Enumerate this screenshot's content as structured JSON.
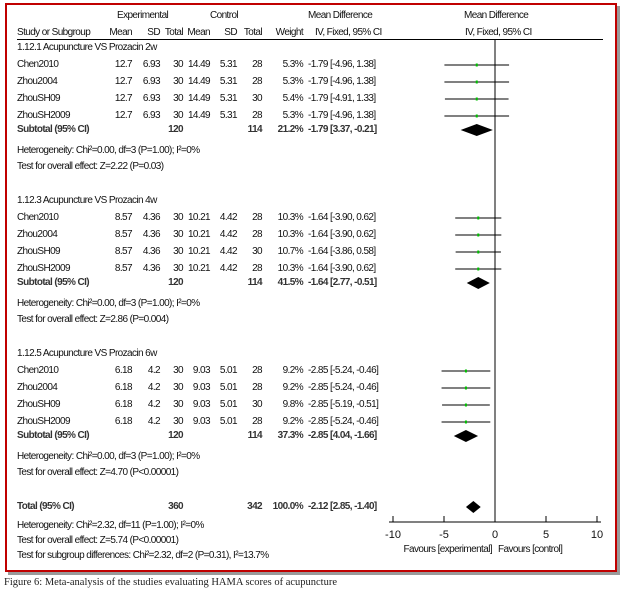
{
  "caption": "Figure 6: Meta-analysis of the studies evaluating HAMA scores of acupuncture",
  "header": {
    "experimental": "Experimental",
    "control": "Control",
    "mean_difference": "Mean Difference",
    "mean_difference_plot": "Mean Difference",
    "study": "Study or Subgroup",
    "mean": "Mean",
    "sd": "SD",
    "total": "Total",
    "weight": "Weight",
    "method": "IV, Fixed, 95% CI",
    "method_plot": "IV, Fixed, 95% CI"
  },
  "chart_data": {
    "type": "forest",
    "xlim": [
      -10,
      10
    ],
    "xticks": [
      "-10",
      "-5",
      "0",
      "5",
      "10"
    ],
    "xlabel_left": "Favours [experimental]",
    "xlabel_right": "Favours [control]",
    "colors": {
      "study_marker": "#00c000",
      "diamond": "#000000",
      "frame": "#c00000"
    },
    "groups": [
      {
        "title": "1.12.1 Acupuncture VS Prozacin 2w",
        "studies": [
          {
            "study": "Chen2010",
            "e_mean": "12.7",
            "e_sd": "6.93",
            "e_total": "30",
            "c_mean": "14.49",
            "c_sd": "5.31",
            "c_total": "28",
            "weight": "5.3%",
            "ci": "-1.79 [-4.96, 1.38]",
            "md": -1.79,
            "lo": -4.96,
            "hi": 1.38
          },
          {
            "study": "Zhou2004",
            "e_mean": "12.7",
            "e_sd": "6.93",
            "e_total": "30",
            "c_mean": "14.49",
            "c_sd": "5.31",
            "c_total": "28",
            "weight": "5.3%",
            "ci": "-1.79 [-4.96, 1.38]",
            "md": -1.79,
            "lo": -4.96,
            "hi": 1.38
          },
          {
            "study": "ZhouSH09",
            "e_mean": "12.7",
            "e_sd": "6.93",
            "e_total": "30",
            "c_mean": "14.49",
            "c_sd": "5.31",
            "c_total": "30",
            "weight": "5.4%",
            "ci": "-1.79 [-4.91, 1.33]",
            "md": -1.79,
            "lo": -4.91,
            "hi": 1.33
          },
          {
            "study": "ZhouSH2009",
            "e_mean": "12.7",
            "e_sd": "6.93",
            "e_total": "30",
            "c_mean": "14.49",
            "c_sd": "5.31",
            "c_total": "28",
            "weight": "5.3%",
            "ci": "-1.79 [-4.96, 1.38]",
            "md": -1.79,
            "lo": -4.96,
            "hi": 1.38
          }
        ],
        "subtotal": {
          "label": "Subtotal (95% CI)",
          "e_total": "120",
          "c_total": "114",
          "weight": "21.2%",
          "ci": "-1.79 [3.37, -0.21]",
          "md": -1.79,
          "lo": -3.37,
          "hi": -0.21
        },
        "heterogeneity": "Heterogeneity: Chi²=0.00, df=3 (P=1.00); I²=0%",
        "overall": "Test for overall effect: Z=2.22 (P=0.03)"
      },
      {
        "title": "1.12.3 Acupuncture VS Prozacin 4w",
        "studies": [
          {
            "study": "Chen2010",
            "e_mean": "8.57",
            "e_sd": "4.36",
            "e_total": "30",
            "c_mean": "10.21",
            "c_sd": "4.42",
            "c_total": "28",
            "weight": "10.3%",
            "ci": "-1.64 [-3.90, 0.62]",
            "md": -1.64,
            "lo": -3.9,
            "hi": 0.62
          },
          {
            "study": "Zhou2004",
            "e_mean": "8.57",
            "e_sd": "4.36",
            "e_total": "30",
            "c_mean": "10.21",
            "c_sd": "4.42",
            "c_total": "28",
            "weight": "10.3%",
            "ci": "-1.64 [-3.90, 0.62]",
            "md": -1.64,
            "lo": -3.9,
            "hi": 0.62
          },
          {
            "study": "ZhouSH09",
            "e_mean": "8.57",
            "e_sd": "4.36",
            "e_total": "30",
            "c_mean": "10.21",
            "c_sd": "4.42",
            "c_total": "30",
            "weight": "10.7%",
            "ci": "-1.64 [-3.86, 0.58]",
            "md": -1.64,
            "lo": -3.86,
            "hi": 0.58
          },
          {
            "study": "ZhouSH2009",
            "e_mean": "8.57",
            "e_sd": "4.36",
            "e_total": "30",
            "c_mean": "10.21",
            "c_sd": "4.42",
            "c_total": "28",
            "weight": "10.3%",
            "ci": "-1.64 [-3.90, 0.62]",
            "md": -1.64,
            "lo": -3.9,
            "hi": 0.62
          }
        ],
        "subtotal": {
          "label": "Subtotal (95% CI)",
          "e_total": "120",
          "c_total": "114",
          "weight": "41.5%",
          "ci": "-1.64 [2.77, -0.51]",
          "md": -1.64,
          "lo": -2.77,
          "hi": -0.51
        },
        "heterogeneity": "Heterogeneity: Chi²=0.00, df=3 (P=1.00); I²=0%",
        "overall": "Test for overall effect: Z=2.86 (P=0.004)"
      },
      {
        "title": "1.12.5 Acupuncture VS Prozacin 6w",
        "studies": [
          {
            "study": "Chen2010",
            "e_mean": "6.18",
            "e_sd": "4.2",
            "e_total": "30",
            "c_mean": "9.03",
            "c_sd": "5.01",
            "c_total": "28",
            "weight": "9.2%",
            "ci": "-2.85 [-5.24, -0.46]",
            "md": -2.85,
            "lo": -5.24,
            "hi": -0.46
          },
          {
            "study": "Zhou2004",
            "e_mean": "6.18",
            "e_sd": "4.2",
            "e_total": "30",
            "c_mean": "9.03",
            "c_sd": "5.01",
            "c_total": "28",
            "weight": "9.2%",
            "ci": "-2.85 [-5.24, -0.46]",
            "md": -2.85,
            "lo": -5.24,
            "hi": -0.46
          },
          {
            "study": "ZhouSH09",
            "e_mean": "6.18",
            "e_sd": "4.2",
            "e_total": "30",
            "c_mean": "9.03",
            "c_sd": "5.01",
            "c_total": "30",
            "weight": "9.8%",
            "ci": "-2.85 [-5.19, -0.51]",
            "md": -2.85,
            "lo": -5.19,
            "hi": -0.51
          },
          {
            "study": "ZhouSH2009",
            "e_mean": "6.18",
            "e_sd": "4.2",
            "e_total": "30",
            "c_mean": "9.03",
            "c_sd": "5.01",
            "c_total": "28",
            "weight": "9.2%",
            "ci": "-2.85 [-5.24, -0.46]",
            "md": -2.85,
            "lo": -5.24,
            "hi": -0.46
          }
        ],
        "subtotal": {
          "label": "Subtotal (95% CI)",
          "e_total": "120",
          "c_total": "114",
          "weight": "37.3%",
          "ci": "-2.85 [4.04, -1.66]",
          "md": -2.85,
          "lo": -4.04,
          "hi": -1.66
        },
        "heterogeneity": "Heterogeneity: Chi²=0.00, df=3 (P=1.00); I²=0%",
        "overall": "Test for overall effect: Z=4.70 (P<0.00001)"
      }
    ],
    "total": {
      "label": "Total (95% CI)",
      "e_total": "360",
      "c_total": "342",
      "weight": "100.0%",
      "ci": "-2.12 [2.85, -1.40]",
      "md": -2.12,
      "lo": -2.85,
      "hi": -1.4
    },
    "total_heterogeneity": "Heterogeneity: Chi²=2.32, df=11 (P=1.00); I²=0%",
    "total_overall": "Test for overall effect: Z=5.74 (P<0.00001)",
    "subgroup_test": "Test for subgroup differences: Chi²=2.32, df=2 (P=0.31), I²=13.7%"
  }
}
